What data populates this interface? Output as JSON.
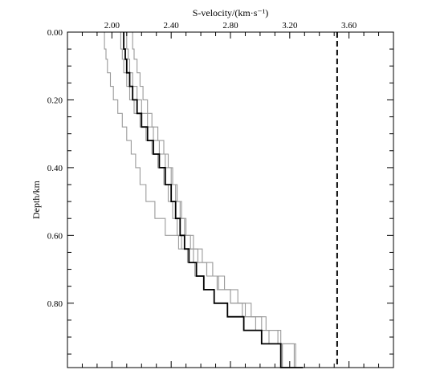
{
  "chart_data": {
    "type": "line",
    "xlabel": "S-velocity/(km·s⁻¹)",
    "ylabel": "Depth/km",
    "xlim": [
      1.7,
      3.9
    ],
    "ylim": [
      0.0,
      0.99
    ],
    "y_inverted": true,
    "x_axis_position": "top",
    "x_ticks": [
      2.0,
      2.4,
      2.8,
      3.2,
      3.6
    ],
    "x_tick_labels": [
      "2.00",
      "2.40",
      "2.80",
      "3.20",
      "3.60"
    ],
    "y_ticks": [
      0.0,
      0.2,
      0.4,
      0.6,
      0.8
    ],
    "y_tick_labels": [
      "0.00",
      "0.20",
      "0.40",
      "0.60",
      "0.80"
    ],
    "grid": false,
    "colors": {
      "best": "#000000",
      "trial": "#9a9a9a",
      "reference": "#000000"
    },
    "reference_line": {
      "x": 3.52,
      "style": "dashed"
    },
    "series": [
      {
        "role": "best",
        "x": [
          2.08,
          2.09,
          2.1,
          2.12,
          2.14,
          2.17,
          2.2,
          2.24,
          2.28,
          2.32,
          2.36,
          2.4,
          2.43,
          2.46,
          2.49,
          2.52,
          2.57,
          2.62,
          2.69,
          2.78,
          2.89,
          3.01,
          3.14,
          3.29
        ],
        "y": [
          0.0,
          0.05,
          0.08,
          0.12,
          0.16,
          0.2,
          0.24,
          0.28,
          0.32,
          0.36,
          0.4,
          0.45,
          0.5,
          0.55,
          0.6,
          0.64,
          0.68,
          0.72,
          0.76,
          0.8,
          0.84,
          0.88,
          0.92,
          0.99
        ]
      },
      {
        "role": "trial",
        "x": [
          2.06,
          2.07,
          2.08,
          2.1,
          2.12,
          2.15,
          2.19,
          2.23,
          2.27,
          2.31,
          2.35,
          2.38,
          2.41,
          2.44,
          2.47,
          2.51,
          2.56,
          2.62,
          2.69,
          2.78,
          2.89,
          3.01,
          3.15,
          3.3
        ],
        "y": [
          0.0,
          0.05,
          0.08,
          0.12,
          0.16,
          0.2,
          0.24,
          0.28,
          0.32,
          0.36,
          0.4,
          0.45,
          0.5,
          0.55,
          0.6,
          0.64,
          0.68,
          0.72,
          0.76,
          0.8,
          0.84,
          0.88,
          0.92,
          0.99
        ]
      },
      {
        "role": "trial",
        "x": [
          2.1,
          2.11,
          2.12,
          2.14,
          2.17,
          2.2,
          2.24,
          2.28,
          2.32,
          2.36,
          2.4,
          2.43,
          2.46,
          2.49,
          2.53,
          2.58,
          2.64,
          2.71,
          2.8,
          2.9,
          3.01,
          3.12,
          3.23,
          3.33
        ],
        "y": [
          0.0,
          0.05,
          0.08,
          0.12,
          0.16,
          0.2,
          0.24,
          0.28,
          0.32,
          0.36,
          0.4,
          0.45,
          0.5,
          0.55,
          0.6,
          0.64,
          0.68,
          0.72,
          0.76,
          0.8,
          0.84,
          0.88,
          0.92,
          0.99
        ]
      },
      {
        "role": "trial",
        "x": [
          2.14,
          2.15,
          2.17,
          2.19,
          2.21,
          2.24,
          2.27,
          2.31,
          2.35,
          2.38,
          2.41,
          2.44,
          2.47,
          2.5,
          2.55,
          2.61,
          2.68,
          2.76,
          2.85,
          2.94,
          3.04,
          3.14,
          3.24,
          3.33
        ],
        "y": [
          0.0,
          0.05,
          0.08,
          0.12,
          0.16,
          0.2,
          0.24,
          0.28,
          0.32,
          0.36,
          0.4,
          0.45,
          0.5,
          0.55,
          0.6,
          0.64,
          0.68,
          0.72,
          0.76,
          0.8,
          0.84,
          0.88,
          0.92,
          0.99
        ]
      },
      {
        "role": "trial",
        "x": [
          1.95,
          1.96,
          1.97,
          1.99,
          2.01,
          2.04,
          2.07,
          2.1,
          2.13,
          2.16,
          2.19,
          2.23,
          2.29,
          2.36,
          2.45,
          2.55,
          2.64,
          2.72,
          2.8,
          2.88,
          2.97,
          3.06,
          3.15,
          3.26
        ],
        "y": [
          0.0,
          0.05,
          0.08,
          0.12,
          0.16,
          0.2,
          0.24,
          0.28,
          0.32,
          0.36,
          0.4,
          0.45,
          0.5,
          0.55,
          0.6,
          0.64,
          0.68,
          0.72,
          0.76,
          0.8,
          0.84,
          0.88,
          0.92,
          0.99
        ]
      }
    ]
  }
}
